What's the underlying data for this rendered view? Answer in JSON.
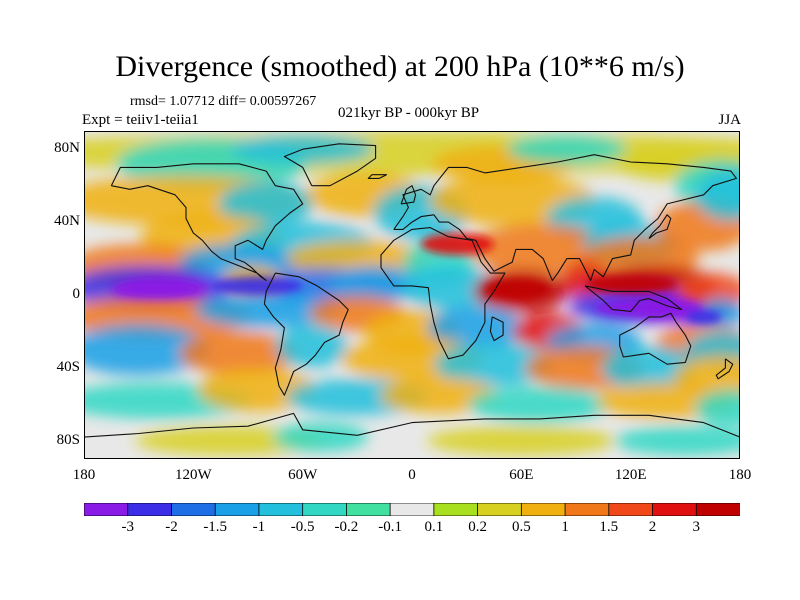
{
  "title": "Divergence (smoothed) at 200 hPa (10**6 m/s)",
  "stats": "rmsd= 1.07712 diff= 0.00597267",
  "experiment": "Expt = teiiv1-teiia1",
  "period": "021kyr BP - 000kyr BP",
  "season": "JJA",
  "axes": {
    "y_ticks": [
      {
        "label": "80N",
        "lat": 80
      },
      {
        "label": "40N",
        "lat": 40
      },
      {
        "label": "0",
        "lat": 0
      },
      {
        "label": "40S",
        "lat": -40
      },
      {
        "label": "80S",
        "lat": -80
      }
    ],
    "x_ticks": [
      {
        "label": "180",
        "lon": -180
      },
      {
        "label": "120W",
        "lon": -120
      },
      {
        "label": "60W",
        "lon": -60
      },
      {
        "label": "0",
        "lon": 0
      },
      {
        "label": "60E",
        "lon": 60
      },
      {
        "label": "120E",
        "lon": 120
      },
      {
        "label": "180",
        "lon": 180
      }
    ],
    "lon_range": [
      -180,
      180
    ],
    "lat_range": [
      -90,
      90
    ]
  },
  "colorbar": {
    "levels": [
      "-3",
      "-2",
      "-1.5",
      "-1",
      "-0.5",
      "-0.2",
      "-0.1",
      "0.1",
      "0.2",
      "0.5",
      "1",
      "1.5",
      "2",
      "3"
    ],
    "colors": [
      "#8a1ae6",
      "#3b2ee6",
      "#1f6ee6",
      "#1aa0e6",
      "#22c0dc",
      "#30d8c4",
      "#40e0a0",
      "#e8e8e8",
      "#a8e020",
      "#d8d020",
      "#f0b010",
      "#f07818",
      "#f04818",
      "#e01010",
      "#c00000"
    ]
  }
}
